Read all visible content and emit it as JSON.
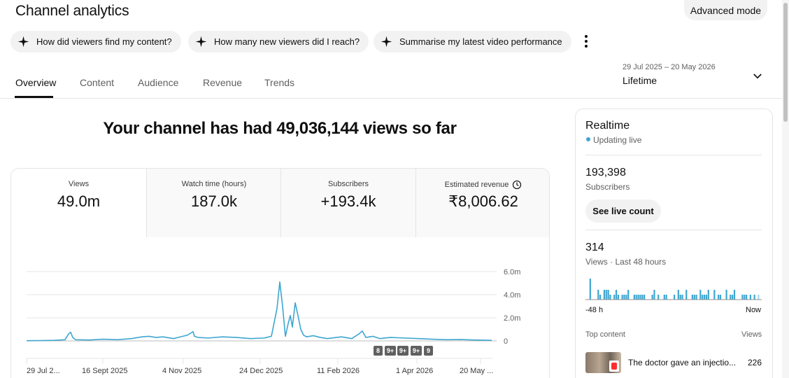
{
  "header": {
    "title": "Channel analytics",
    "advanced_mode": "Advanced mode"
  },
  "chips": [
    "How did viewers find my content?",
    "How many new viewers did I reach?",
    "Summarise my latest video performance"
  ],
  "tabs": [
    "Overview",
    "Content",
    "Audience",
    "Revenue",
    "Trends"
  ],
  "date": {
    "range": "29 Jul 2025 – 20 May 2026",
    "label": "Lifetime"
  },
  "headline": "Your channel has had 49,036,144 views so far",
  "metrics": [
    {
      "label": "Views",
      "value": "49.0m"
    },
    {
      "label": "Watch time (hours)",
      "value": "187.0k"
    },
    {
      "label": "Subscribers",
      "value": "+193.4k"
    },
    {
      "label": "Estimated revenue",
      "value": "₹8,006.62"
    }
  ],
  "chart_data": {
    "type": "line",
    "series": [
      {
        "color": "#3ea6d0"
      }
    ],
    "x_ticks": [
      "29 Jul 2...",
      "16 Sept 2025",
      "4 Nov 2025",
      "24 Dec 2025",
      "11 Feb 2026",
      "1 Apr 2026",
      "20 May ..."
    ],
    "y_ticks": [
      "6.0m",
      "4.0m",
      "2.0m",
      "0"
    ],
    "ylim": [
      0,
      6000000
    ],
    "grid": true,
    "points": [
      [
        0,
        0.02
      ],
      [
        20,
        0.03
      ],
      [
        40,
        0.05
      ],
      [
        55,
        0.1
      ],
      [
        60,
        0.6
      ],
      [
        63,
        0.75
      ],
      [
        66,
        0.3
      ],
      [
        70,
        0.1
      ],
      [
        90,
        0.08
      ],
      [
        110,
        0.15
      ],
      [
        130,
        0.1
      ],
      [
        150,
        0.2
      ],
      [
        165,
        0.35
      ],
      [
        175,
        0.4
      ],
      [
        185,
        0.3
      ],
      [
        195,
        0.35
      ],
      [
        210,
        0.2
      ],
      [
        230,
        0.5
      ],
      [
        238,
        0.8
      ],
      [
        240,
        0.4
      ],
      [
        245,
        0.3
      ],
      [
        260,
        0.25
      ],
      [
        280,
        0.35
      ],
      [
        300,
        0.3
      ],
      [
        320,
        0.2
      ],
      [
        340,
        0.25
      ],
      [
        350,
        0.4
      ],
      [
        358,
        2.8
      ],
      [
        362,
        5.1
      ],
      [
        366,
        3.0
      ],
      [
        370,
        0.4
      ],
      [
        374,
        1.5
      ],
      [
        377,
        2.2
      ],
      [
        380,
        1.2
      ],
      [
        384,
        3.3
      ],
      [
        388,
        2.2
      ],
      [
        392,
        1.0
      ],
      [
        396,
        0.5
      ],
      [
        400,
        0.35
      ],
      [
        410,
        0.45
      ],
      [
        420,
        0.3
      ],
      [
        430,
        0.2
      ],
      [
        450,
        0.35
      ],
      [
        465,
        0.2
      ],
      [
        475,
        0.6
      ],
      [
        480,
        0.85
      ],
      [
        485,
        0.3
      ],
      [
        495,
        0.4
      ],
      [
        505,
        0.2
      ],
      [
        520,
        0.3
      ],
      [
        540,
        0.25
      ],
      [
        560,
        0.2
      ],
      [
        580,
        0.15
      ],
      [
        600,
        0.1
      ],
      [
        620,
        0.12
      ],
      [
        640,
        0.08
      ],
      [
        665,
        0.05
      ]
    ],
    "badges": [
      "8",
      "9+",
      "9+",
      "9+",
      "9"
    ]
  },
  "realtime": {
    "title": "Realtime",
    "live": "Updating live",
    "subs_value": "193,398",
    "subs_label": "Subscribers",
    "live_btn": "See live count",
    "views_value": "314",
    "views_label": "Views · Last 48 hours",
    "mini_left": "-48 h",
    "mini_right": "Now",
    "bars": [
      0,
      0,
      5,
      0,
      0,
      0,
      2,
      1,
      0,
      2,
      2,
      2,
      1,
      0,
      1,
      2,
      1,
      0,
      1,
      1,
      1,
      2,
      0,
      0,
      1,
      1,
      1,
      1,
      1,
      1,
      0,
      0,
      0,
      1,
      2,
      0,
      1,
      0,
      0,
      1,
      1,
      0,
      0,
      0,
      1,
      0,
      2,
      1,
      1,
      0,
      2,
      0,
      0,
      1,
      1,
      1,
      0,
      2,
      1,
      1,
      1,
      2,
      0,
      0,
      2,
      0,
      1,
      1,
      0,
      0,
      2,
      0,
      1,
      1,
      2,
      0,
      0,
      0,
      1,
      1,
      1,
      0,
      1,
      0,
      1,
      0,
      1,
      0
    ],
    "top_content_label": "Top content",
    "views_col": "Views",
    "top_item_title": "The doctor gave an injectio...",
    "top_item_views": "226"
  }
}
